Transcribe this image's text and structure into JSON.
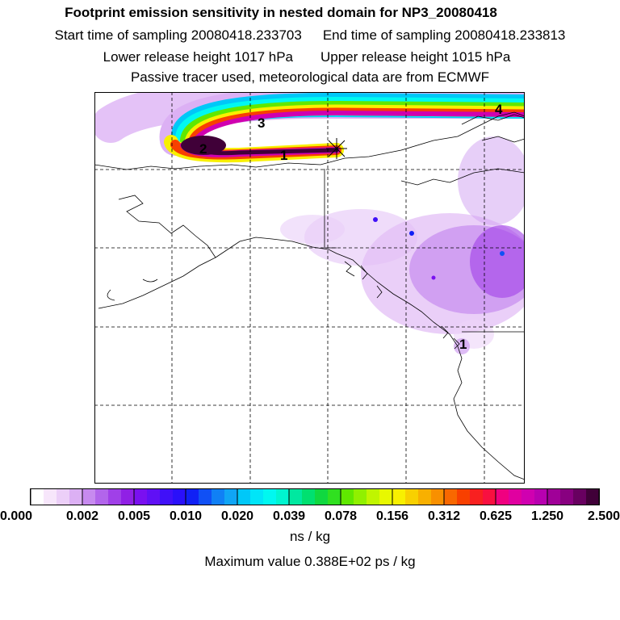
{
  "titles": {
    "line1": "Footprint emission sensitivity in nested domain for NP3_20080418",
    "start": "Start time of sampling 20080418.233703",
    "end": "End time of sampling 20080418.233813",
    "lower": "Lower release height 1017 hPa",
    "upper": "Upper release height 1015 hPa",
    "line4": "Passive tracer used, meteorological data are from ECMWF"
  },
  "map": {
    "labels": [
      "1",
      "2",
      "3",
      "4"
    ],
    "release_marker": "asterisk-icon",
    "gridlines": "dashed"
  },
  "colorbar": {
    "ticks": [
      "0.000",
      "0.002",
      "0.005",
      "0.010",
      "0.020",
      "0.039",
      "0.078",
      "0.156",
      "0.312",
      "0.625",
      "1.250",
      "2.500"
    ],
    "colors": [
      "#ffffff",
      "#f7e6fb",
      "#eccff8",
      "#dcb0f4",
      "#c78aef",
      "#b265eb",
      "#a040e8",
      "#9020e5",
      "#7a10f0",
      "#6010f5",
      "#4010f8",
      "#2a10fa",
      "#1020f5",
      "#1050f5",
      "#1080f5",
      "#10a5f5",
      "#00c8f8",
      "#00e5f8",
      "#00f8f0",
      "#00f5d0",
      "#00e8a0",
      "#00e070",
      "#10d840",
      "#30e020",
      "#60e800",
      "#90f000",
      "#c0f500",
      "#e8f800",
      "#f8f000",
      "#f8d000",
      "#f8b000",
      "#f89000",
      "#f86800",
      "#f84000",
      "#f82020",
      "#f81040",
      "#f00080",
      "#e000a0",
      "#d000b0",
      "#b800b0",
      "#a00098",
      "#880080",
      "#680060",
      "#400038"
    ],
    "unit": "ns / kg"
  },
  "max_value": "Maximum value  0.388E+02 ps / kg"
}
